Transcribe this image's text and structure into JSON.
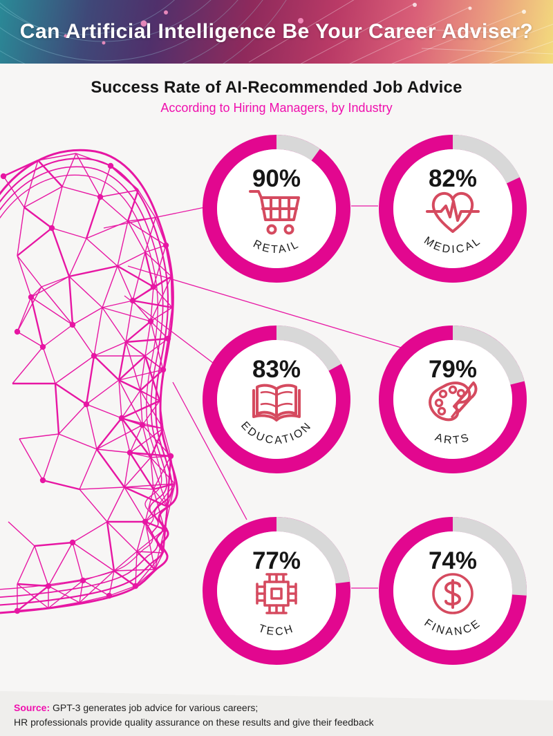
{
  "header": {
    "title": "Can Artificial Intelligence Be Your Career Adviser?"
  },
  "section": {
    "title": "Success Rate of AI-Recommended Job Advice",
    "subtitle": "According to Hiring Managers, by Industry"
  },
  "chart_data": {
    "type": "donut-grid",
    "title": "Success Rate of AI-Recommended Job Advice",
    "subtitle": "According to Hiring Managers, by Industry",
    "unit": "%",
    "value_range": [
      0,
      100
    ],
    "layout": "2 columns x 3 rows, remainder segment starts at 12 o'clock and sweeps clockwise",
    "series": [
      {
        "label": "RETAIL",
        "value": 90,
        "icon": "shopping-cart-icon"
      },
      {
        "label": "MEDICAL",
        "value": 82,
        "icon": "heart-pulse-icon"
      },
      {
        "label": "EDUCATION",
        "value": 83,
        "icon": "open-book-icon"
      },
      {
        "label": "ARTS",
        "value": 79,
        "icon": "paint-palette-icon"
      },
      {
        "label": "TECH",
        "value": 77,
        "icon": "cpu-chip-icon"
      },
      {
        "label": "FINANCE",
        "value": 74,
        "icon": "dollar-circle-icon"
      }
    ],
    "ring_color": "#e2078f",
    "remainder_color": "#d8d8d8",
    "icon_color": "#d54a5f",
    "value_color": "#161616"
  },
  "colors": {
    "subtitle_magenta": "#ef0fad",
    "illustration_magenta": "#e716a3",
    "banner_text": "#ffffff",
    "background": "#f7f6f5",
    "footer_background": "#efeeec"
  },
  "illustration": {
    "name": "wireframe-head",
    "description": "low-poly network wireframe of a human head profile facing right, magenta lines and node dots, with thin connector lines to the donut charts"
  },
  "footer": {
    "source_label": "Source:",
    "line1": "GPT-3 generates job advice for various careers;",
    "line2": "HR professionals provide quality assurance on these results and give their feedback"
  }
}
